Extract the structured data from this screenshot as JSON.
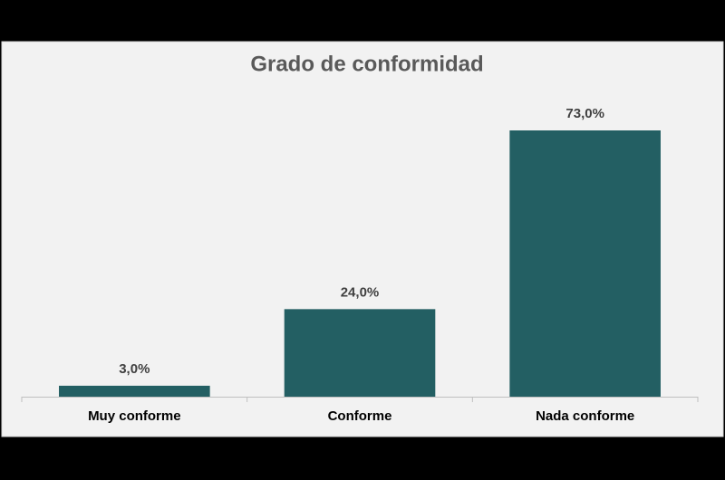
{
  "chart_data": {
    "type": "bar",
    "title": "Grado de conformidad",
    "categories": [
      "Muy conforme",
      "Conforme",
      "Nada conforme"
    ],
    "values": [
      3,
      24,
      73
    ],
    "value_labels": [
      "3,0%",
      "24,0%",
      "73,0%"
    ],
    "color": "#235f63"
  }
}
